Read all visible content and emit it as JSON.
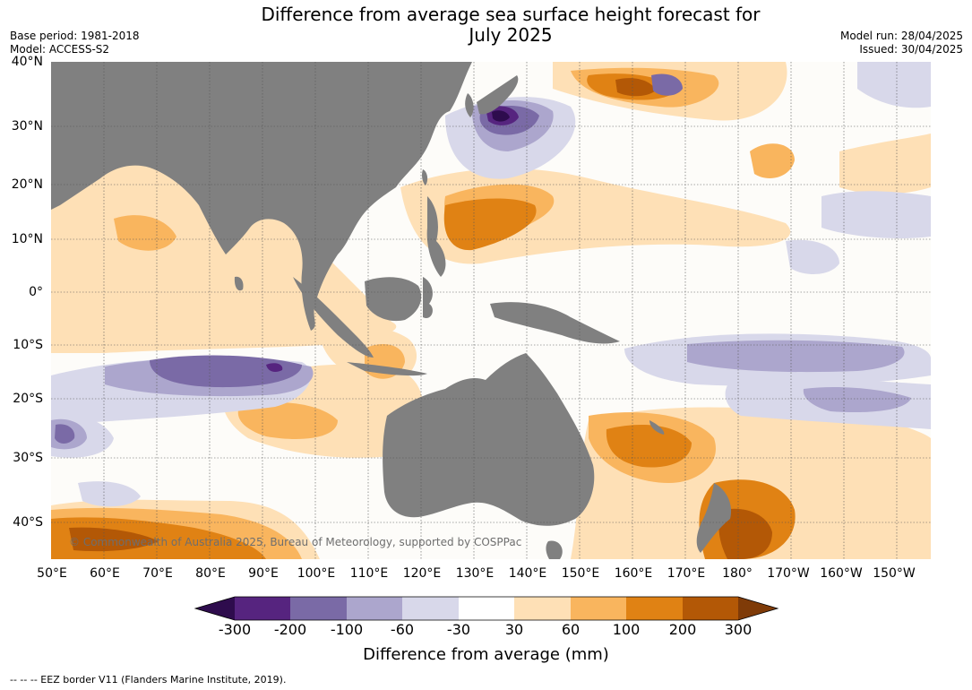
{
  "header": {
    "title_line1": "Difference from average sea surface height forecast for",
    "title_line2": "July 2025",
    "base_period": "Base period: 1981-2018",
    "model": "Model: ACCESS-S2",
    "model_run": "Model run: 28/04/2025",
    "issued": "Issued: 30/04/2025"
  },
  "map": {
    "lat_labels": [
      "40°N",
      "30°N",
      "20°N",
      "10°N",
      "0°",
      "10°S",
      "20°S",
      "30°S",
      "40°S"
    ],
    "lon_labels": [
      "50°E",
      "60°E",
      "70°E",
      "80°E",
      "90°E",
      "100°E",
      "110°E",
      "120°E",
      "130°E",
      "140°E",
      "150°E",
      "160°E",
      "170°E",
      "180°",
      "170°W",
      "160°W",
      "150°W"
    ],
    "copyright": "© Commonwealth of Australia 2025, Bureau of Meteorology, supported by COSPPac",
    "land_color": "#808080"
  },
  "colorbar": {
    "labels": [
      "-300",
      "-200",
      "-100",
      "-60",
      "-30",
      "30",
      "60",
      "100",
      "200",
      "300"
    ],
    "colors": [
      "#2e0c4d",
      "#56247f",
      "#7a6aa6",
      "#aca6cd",
      "#d8d8ea",
      "#ffffff",
      "#fee0b6",
      "#f9b55e",
      "#e08214",
      "#b35806",
      "#7f3b08"
    ],
    "title": "Difference from average (mm)"
  },
  "footnote": "--  --  -- EEZ border V11 (Flanders Marine Institute, 2019)."
}
